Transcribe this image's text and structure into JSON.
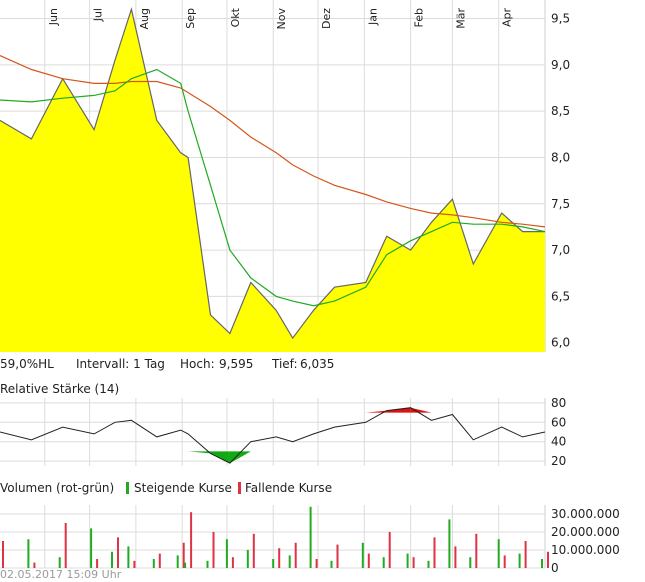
{
  "months": [
    "Jun",
    "Jul",
    "Aug",
    "Sep",
    "Okt",
    "Nov",
    "Dez",
    "Jan",
    "Feb",
    "Mär",
    "Apr"
  ],
  "price_chart": {
    "y_ticks": [
      "9,5",
      "9,0",
      "8,5",
      "8,0",
      "7,5",
      "7,0",
      "6,5",
      "6,0"
    ],
    "info": {
      "hl": "59,0%HL",
      "interval": "Intervall: 1 Tag",
      "high_label": "Hoch:",
      "high": "9,595",
      "low_label": "Tief:",
      "low": "6,035"
    }
  },
  "rsi_panel": {
    "title": "Relative Stärke (14)",
    "y_ticks": [
      "80",
      "60",
      "40",
      "20"
    ]
  },
  "volume_panel": {
    "title": "Volumen (rot-grün)",
    "legend_up": "Steigende Kurse",
    "legend_down": "Fallende Kurse",
    "y_ticks": [
      "30.000.000",
      "20.000.000",
      "10.000.000",
      "0"
    ]
  },
  "timestamp": "02.05.2017 15:09 Uhr",
  "colors": {
    "area": "#ffff00",
    "price_line": "#666666",
    "ma_short": "#22aa22",
    "ma_long": "#d4561e",
    "rsi_over": "#dd1111",
    "rsi_under": "#11aa11",
    "vol_up": "#22aa22",
    "vol_down": "#dd3344"
  },
  "chart_data": [
    {
      "type": "area",
      "x": [
        "2016-05-02",
        "2016-05-23",
        "2016-06-13",
        "2016-07-04",
        "2016-07-18",
        "2016-07-29",
        "2016-08-15",
        "2016-08-31",
        "2016-09-05",
        "2016-09-20",
        "2016-10-03",
        "2016-10-17",
        "2016-11-03",
        "2016-11-14",
        "2016-11-28",
        "2016-12-12",
        "2017-01-02",
        "2017-01-16",
        "2017-02-01",
        "2017-02-15",
        "2017-03-01",
        "2017-03-15",
        "2017-04-03",
        "2017-04-17",
        "2017-05-02"
      ],
      "series": [
        {
          "values": [
            8.4,
            8.2,
            8.85,
            8.3,
            9.05,
            9.6,
            8.4,
            8.05,
            8.0,
            6.3,
            6.1,
            6.65,
            6.35,
            6.05,
            6.35,
            6.6,
            6.65,
            7.15,
            7.0,
            7.3,
            7.55,
            6.85,
            7.4,
            7.2,
            7.2
          ]
        },
        {
          "values": [
            8.62,
            8.6,
            8.64,
            8.67,
            8.72,
            8.85,
            8.95,
            8.8,
            8.5,
            7.7,
            7.0,
            6.7,
            6.5,
            6.45,
            6.4,
            6.45,
            6.6,
            6.95,
            7.1,
            7.2,
            7.3,
            7.28,
            7.28,
            7.25,
            7.2
          ]
        },
        {
          "values": [
            9.1,
            8.95,
            8.85,
            8.8,
            8.8,
            8.82,
            8.82,
            8.75,
            8.7,
            8.55,
            8.4,
            8.22,
            8.05,
            7.92,
            7.8,
            7.7,
            7.6,
            7.52,
            7.45,
            7.4,
            7.38,
            7.35,
            7.3,
            7.28,
            7.25
          ]
        }
      ],
      "ylim": [
        5.9,
        9.7
      ]
    },
    {
      "type": "line",
      "x": [
        "2016-05-02",
        "2016-05-23",
        "2016-06-13",
        "2016-07-04",
        "2016-07-18",
        "2016-07-29",
        "2016-08-15",
        "2016-08-31",
        "2016-09-05",
        "2016-09-20",
        "2016-10-03",
        "2016-10-17",
        "2016-11-03",
        "2016-11-14",
        "2016-11-28",
        "2016-12-12",
        "2017-01-02",
        "2017-01-16",
        "2017-02-01",
        "2017-02-15",
        "2017-03-01",
        "2017-03-15",
        "2017-04-03",
        "2017-04-17",
        "2017-05-02"
      ],
      "series": [
        {
          "name": "Relative Stärke (14)",
          "values": [
            50,
            42,
            55,
            48,
            60,
            62,
            45,
            52,
            48,
            28,
            18,
            40,
            45,
            40,
            48,
            55,
            60,
            72,
            75,
            62,
            68,
            42,
            55,
            45,
            50
          ]
        }
      ],
      "ylim": [
        15,
        85
      ]
    },
    {
      "type": "bar",
      "x": [
        "2016-05-02",
        "2016-05-23",
        "2016-06-13",
        "2016-07-04",
        "2016-07-18",
        "2016-07-29",
        "2016-08-15",
        "2016-08-31",
        "2016-09-05",
        "2016-09-20",
        "2016-10-03",
        "2016-10-17",
        "2016-11-03",
        "2016-11-14",
        "2016-11-28",
        "2016-12-12",
        "2017-01-02",
        "2017-01-16",
        "2017-02-01",
        "2017-02-15",
        "2017-03-01",
        "2017-03-15",
        "2017-04-03",
        "2017-04-17",
        "2017-05-02"
      ],
      "series": [
        {
          "name": "Steigende Kurse",
          "values": [
            4000000,
            16000000,
            6000000,
            22000000,
            9000000,
            12000000,
            5000000,
            7000000,
            3000000,
            4000000,
            16000000,
            10000000,
            5000000,
            7000000,
            34000000,
            4000000,
            14000000,
            6000000,
            8000000,
            4000000,
            27000000,
            6000000,
            16000000,
            8000000,
            5000000
          ]
        },
        {
          "name": "Fallende Kurse",
          "values": [
            15000000,
            3000000,
            25000000,
            5000000,
            17000000,
            4000000,
            8000000,
            14000000,
            31000000,
            20000000,
            6000000,
            19000000,
            11000000,
            14000000,
            5000000,
            13000000,
            8000000,
            20000000,
            6000000,
            17000000,
            12000000,
            19000000,
            7000000,
            15000000,
            9000000
          ]
        }
      ],
      "ylim": [
        0,
        35000000
      ]
    }
  ]
}
